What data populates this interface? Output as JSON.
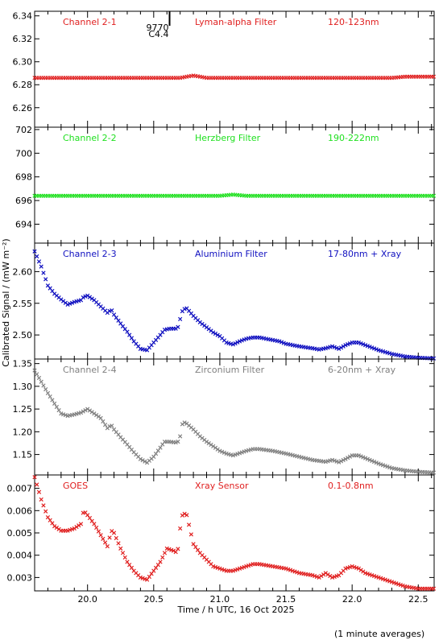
{
  "chart_data": {
    "type": "scatter",
    "xlabel": "Time / h UTC, 16 Oct 2025",
    "ylabel": "Calibrated Signal / (mW m⁻²)",
    "xlim": [
      19.6,
      22.62
    ],
    "xticks": [
      "20.0",
      "20.5",
      "21.0",
      "21.5",
      "22.0",
      "22.5"
    ],
    "footnote": "(1 minute averages)",
    "flare_marker": {
      "x": 20.62,
      "label1": "9770",
      "label2": "C4.4"
    },
    "panels": [
      {
        "channel": "Channel 2-1",
        "filter": "Lyman-alpha Filter",
        "band": "120-123nm",
        "color": "#e02020",
        "ylim": [
          6.243,
          6.344
        ],
        "yticks": [
          "6.26",
          "6.28",
          "6.30",
          "6.32",
          "6.34"
        ],
        "points": [
          [
            19.6,
            6.286
          ],
          [
            20.0,
            6.286
          ],
          [
            20.5,
            6.286
          ],
          [
            20.7,
            6.286
          ],
          [
            20.8,
            6.288
          ],
          [
            20.9,
            6.286
          ],
          [
            21.5,
            6.286
          ],
          [
            22.0,
            6.286
          ],
          [
            22.3,
            6.286
          ],
          [
            22.4,
            6.287
          ],
          [
            22.62,
            6.287
          ]
        ]
      },
      {
        "channel": "Channel 2-2",
        "filter": "Herzberg Filter",
        "band": "190-222nm",
        "color": "#20e020",
        "ylim": [
          692.4,
          702.2
        ],
        "yticks": [
          "694",
          "696",
          "698",
          "700",
          "702"
        ],
        "points": [
          [
            19.6,
            696.4
          ],
          [
            21.0,
            696.4
          ],
          [
            21.1,
            696.5
          ],
          [
            21.2,
            696.4
          ],
          [
            22.62,
            696.4
          ]
        ]
      },
      {
        "channel": "Channel 2-3",
        "filter": "Aluminium Filter",
        "band": "17-80nm + Xray",
        "color": "#1010c0",
        "ylim": [
          2.462,
          2.645
        ],
        "yticks": [
          "2.50",
          "2.55",
          "2.60"
        ],
        "points": [
          [
            19.6,
            2.632
          ],
          [
            19.65,
            2.608
          ],
          [
            19.7,
            2.578
          ],
          [
            19.75,
            2.565
          ],
          [
            19.8,
            2.556
          ],
          [
            19.85,
            2.548
          ],
          [
            19.9,
            2.552
          ],
          [
            19.95,
            2.555
          ],
          [
            19.97,
            2.56
          ],
          [
            20.0,
            2.562
          ],
          [
            20.05,
            2.555
          ],
          [
            20.1,
            2.545
          ],
          [
            20.15,
            2.535
          ],
          [
            20.18,
            2.54
          ],
          [
            20.2,
            2.532
          ],
          [
            20.25,
            2.518
          ],
          [
            20.3,
            2.505
          ],
          [
            20.35,
            2.49
          ],
          [
            20.4,
            2.478
          ],
          [
            20.45,
            2.476
          ],
          [
            20.5,
            2.488
          ],
          [
            20.55,
            2.5
          ],
          [
            20.58,
            2.508
          ],
          [
            20.62,
            2.51
          ],
          [
            20.65,
            2.51
          ],
          [
            20.68,
            2.51
          ],
          [
            20.7,
            2.525
          ],
          [
            20.72,
            2.54
          ],
          [
            20.75,
            2.542
          ],
          [
            20.8,
            2.53
          ],
          [
            20.85,
            2.52
          ],
          [
            20.9,
            2.512
          ],
          [
            20.95,
            2.504
          ],
          [
            21.0,
            2.498
          ],
          [
            21.05,
            2.488
          ],
          [
            21.1,
            2.485
          ],
          [
            21.15,
            2.49
          ],
          [
            21.2,
            2.494
          ],
          [
            21.25,
            2.496
          ],
          [
            21.3,
            2.496
          ],
          [
            21.35,
            2.494
          ],
          [
            21.4,
            2.492
          ],
          [
            21.45,
            2.49
          ],
          [
            21.5,
            2.486
          ],
          [
            21.6,
            2.482
          ],
          [
            21.7,
            2.479
          ],
          [
            21.75,
            2.477
          ],
          [
            21.8,
            2.479
          ],
          [
            21.85,
            2.482
          ],
          [
            21.9,
            2.478
          ],
          [
            21.95,
            2.484
          ],
          [
            22.0,
            2.488
          ],
          [
            22.05,
            2.488
          ],
          [
            22.1,
            2.484
          ],
          [
            22.2,
            2.476
          ],
          [
            22.3,
            2.47
          ],
          [
            22.4,
            2.466
          ],
          [
            22.5,
            2.464
          ],
          [
            22.62,
            2.463
          ]
        ]
      },
      {
        "channel": "Channel 2-4",
        "filter": "Zirconium Filter",
        "band": "6-20nm + Xray",
        "color": "#808080",
        "ylim": [
          1.105,
          1.36
        ],
        "yticks": [
          "1.15",
          "1.20",
          "1.25",
          "1.30",
          "1.35"
        ],
        "points": [
          [
            19.6,
            1.335
          ],
          [
            19.65,
            1.31
          ],
          [
            19.7,
            1.285
          ],
          [
            19.75,
            1.262
          ],
          [
            19.8,
            1.24
          ],
          [
            19.85,
            1.235
          ],
          [
            19.9,
            1.238
          ],
          [
            19.95,
            1.242
          ],
          [
            20.0,
            1.25
          ],
          [
            20.05,
            1.24
          ],
          [
            20.1,
            1.23
          ],
          [
            20.15,
            1.208
          ],
          [
            20.18,
            1.215
          ],
          [
            20.2,
            1.205
          ],
          [
            20.25,
            1.188
          ],
          [
            20.3,
            1.172
          ],
          [
            20.35,
            1.155
          ],
          [
            20.4,
            1.14
          ],
          [
            20.45,
            1.132
          ],
          [
            20.5,
            1.145
          ],
          [
            20.55,
            1.165
          ],
          [
            20.58,
            1.178
          ],
          [
            20.62,
            1.178
          ],
          [
            20.68,
            1.176
          ],
          [
            20.7,
            1.19
          ],
          [
            20.72,
            1.222
          ],
          [
            20.75,
            1.218
          ],
          [
            20.8,
            1.205
          ],
          [
            20.85,
            1.19
          ],
          [
            20.9,
            1.178
          ],
          [
            20.95,
            1.168
          ],
          [
            21.0,
            1.158
          ],
          [
            21.05,
            1.152
          ],
          [
            21.1,
            1.148
          ],
          [
            21.15,
            1.153
          ],
          [
            21.2,
            1.158
          ],
          [
            21.25,
            1.162
          ],
          [
            21.3,
            1.162
          ],
          [
            21.35,
            1.16
          ],
          [
            21.4,
            1.158
          ],
          [
            21.5,
            1.152
          ],
          [
            21.6,
            1.145
          ],
          [
            21.7,
            1.138
          ],
          [
            21.8,
            1.134
          ],
          [
            21.85,
            1.138
          ],
          [
            21.9,
            1.133
          ],
          [
            21.95,
            1.14
          ],
          [
            22.0,
            1.148
          ],
          [
            22.05,
            1.148
          ],
          [
            22.1,
            1.142
          ],
          [
            22.2,
            1.13
          ],
          [
            22.3,
            1.12
          ],
          [
            22.4,
            1.115
          ],
          [
            22.5,
            1.112
          ],
          [
            22.62,
            1.11
          ]
        ]
      },
      {
        "channel": "GOES",
        "filter": "Xray Sensor",
        "band": "0.1-0.8nm",
        "color": "#e02020",
        "ylim": [
          0.0024,
          0.0076
        ],
        "yticks": [
          "0.003",
          "0.004",
          "0.005",
          "0.006",
          "0.007"
        ],
        "points": [
          [
            19.6,
            0.0075
          ],
          [
            19.65,
            0.0065
          ],
          [
            19.7,
            0.0057
          ],
          [
            19.75,
            0.0053
          ],
          [
            19.8,
            0.0051
          ],
          [
            19.85,
            0.0051
          ],
          [
            19.9,
            0.0052
          ],
          [
            19.95,
            0.0054
          ],
          [
            19.97,
            0.006
          ],
          [
            20.0,
            0.0058
          ],
          [
            20.05,
            0.0054
          ],
          [
            20.1,
            0.0049
          ],
          [
            20.15,
            0.0044
          ],
          [
            20.18,
            0.0051
          ],
          [
            20.2,
            0.005
          ],
          [
            20.25,
            0.0043
          ],
          [
            20.3,
            0.0037
          ],
          [
            20.35,
            0.0033
          ],
          [
            20.4,
            0.003
          ],
          [
            20.45,
            0.0029
          ],
          [
            20.5,
            0.0033
          ],
          [
            20.55,
            0.0037
          ],
          [
            20.6,
            0.0043
          ],
          [
            20.65,
            0.0042
          ],
          [
            20.68,
            0.0041
          ],
          [
            20.7,
            0.0052
          ],
          [
            20.72,
            0.0059
          ],
          [
            20.75,
            0.0058
          ],
          [
            20.8,
            0.0045
          ],
          [
            20.85,
            0.0041
          ],
          [
            20.9,
            0.0038
          ],
          [
            20.95,
            0.0035
          ],
          [
            21.0,
            0.0034
          ],
          [
            21.05,
            0.0033
          ],
          [
            21.1,
            0.0033
          ],
          [
            21.15,
            0.0034
          ],
          [
            21.2,
            0.0035
          ],
          [
            21.25,
            0.0036
          ],
          [
            21.3,
            0.0036
          ],
          [
            21.4,
            0.0035
          ],
          [
            21.5,
            0.0034
          ],
          [
            21.6,
            0.0032
          ],
          [
            21.7,
            0.0031
          ],
          [
            21.75,
            0.003
          ],
          [
            21.8,
            0.0032
          ],
          [
            21.85,
            0.003
          ],
          [
            21.9,
            0.0031
          ],
          [
            21.95,
            0.0034
          ],
          [
            22.0,
            0.0035
          ],
          [
            22.05,
            0.0034
          ],
          [
            22.1,
            0.0032
          ],
          [
            22.2,
            0.003
          ],
          [
            22.3,
            0.0028
          ],
          [
            22.4,
            0.0026
          ],
          [
            22.5,
            0.0025
          ],
          [
            22.62,
            0.0025
          ]
        ]
      }
    ]
  }
}
